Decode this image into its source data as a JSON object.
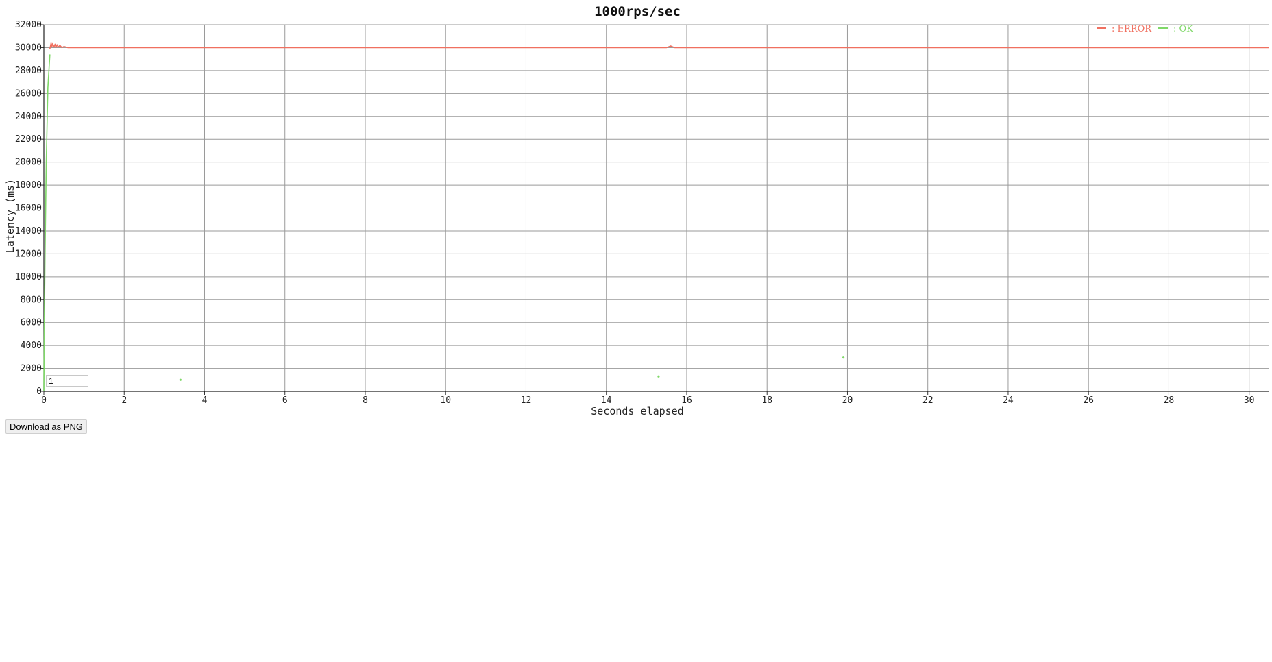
{
  "download_label": "Download as PNG",
  "zoom_value": "1",
  "chart_data": {
    "type": "line",
    "title": "1000rps/sec",
    "xlabel": "Seconds elapsed",
    "ylabel": "Latency (ms)",
    "xlim": [
      0,
      30.5
    ],
    "ylim": [
      0,
      32000
    ],
    "xticks": [
      0,
      2,
      4,
      6,
      8,
      10,
      12,
      14,
      16,
      18,
      20,
      22,
      24,
      26,
      28,
      30
    ],
    "yticks": [
      0,
      2000,
      4000,
      6000,
      8000,
      10000,
      12000,
      14000,
      16000,
      18000,
      20000,
      22000,
      24000,
      26000,
      28000,
      30000,
      32000
    ],
    "grid": true,
    "legend_position": "top-right",
    "series": [
      {
        "name": "ERROR",
        "color": "#f07060",
        "style": "line",
        "points": [
          [
            0.15,
            29900
          ],
          [
            0.18,
            30400
          ],
          [
            0.2,
            30100
          ],
          [
            0.22,
            30350
          ],
          [
            0.25,
            30050
          ],
          [
            0.28,
            30300
          ],
          [
            0.3,
            30000
          ],
          [
            0.33,
            30250
          ],
          [
            0.36,
            30050
          ],
          [
            0.4,
            30200
          ],
          [
            0.45,
            30000
          ],
          [
            0.5,
            30100
          ],
          [
            0.6,
            30000
          ],
          [
            1,
            30000
          ],
          [
            2,
            30000
          ],
          [
            4,
            30000
          ],
          [
            6,
            30000
          ],
          [
            8,
            30000
          ],
          [
            10,
            30000
          ],
          [
            12,
            30000
          ],
          [
            14,
            30000
          ],
          [
            15.5,
            30000
          ],
          [
            15.6,
            30150
          ],
          [
            15.7,
            30000
          ],
          [
            18,
            30000
          ],
          [
            20,
            30000
          ],
          [
            22,
            30000
          ],
          [
            24,
            30000
          ],
          [
            26,
            30000
          ],
          [
            28,
            30000
          ],
          [
            30,
            30000
          ],
          [
            30.5,
            30000
          ]
        ]
      },
      {
        "name": "OK",
        "color": "#7fd868",
        "style": "line",
        "points": [
          [
            0,
            0
          ],
          [
            0.01,
            5200
          ],
          [
            0.03,
            12000
          ],
          [
            0.06,
            20000
          ],
          [
            0.1,
            26500
          ],
          [
            0.15,
            29400
          ]
        ]
      },
      {
        "name": "OK",
        "color": "#7fd868",
        "style": "points",
        "points": [
          [
            3.4,
            1000
          ],
          [
            15.3,
            1300
          ],
          [
            19.9,
            2950
          ]
        ]
      }
    ]
  }
}
